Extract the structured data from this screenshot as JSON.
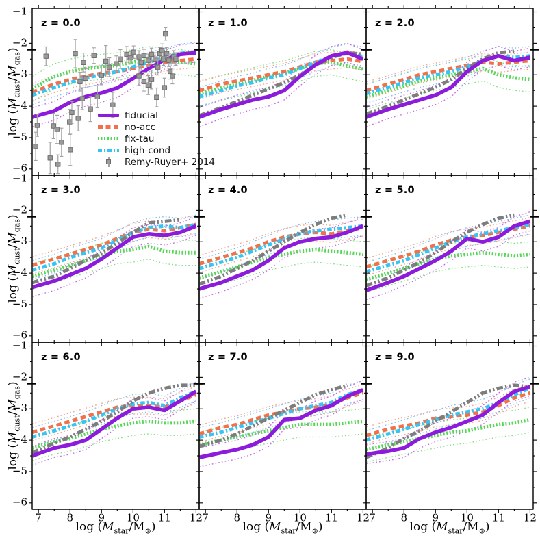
{
  "chart_data": {
    "type": "line",
    "layout_hint": "3x3 shared-axis panel grid",
    "xlabel": "log (M_star/M_sun)",
    "ylabel": "log (M_dust/M_gas)",
    "xlabel_fragments": {
      "pre": "log (",
      "m1": "M",
      "sub1": "star",
      "mid": "/M",
      "sub2": "⊙",
      "post": ")"
    },
    "ylabel_fragments": {
      "pre": "log (",
      "m1": "M",
      "sub1": "dust",
      "mid": "/",
      "m2": "M",
      "sub2": "gas",
      "post": ")"
    },
    "xlim": [
      6.8,
      12.1
    ],
    "ylim": [
      -6.2,
      -0.88
    ],
    "xticks": [
      7,
      8,
      9,
      10,
      11,
      12
    ],
    "xtick_labels": [
      "7",
      "8",
      "9",
      "10",
      "11",
      "12"
    ],
    "yticks": [
      -1,
      -2,
      -3,
      -4,
      -5,
      -6
    ],
    "ytick_labels": [
      "−1",
      "−2",
      "−3",
      "−4",
      "−5",
      "−6"
    ],
    "minor_tick_step": 0.5,
    "mw_marker_y": -2.2,
    "grid": "off",
    "legend_position": "lower right of first panel",
    "x_grid": [
      6.8,
      7.5,
      8.0,
      8.5,
      9.0,
      9.5,
      10.0,
      10.5,
      11.0,
      11.5,
      12.0
    ],
    "series_styles": [
      {
        "key": "fixtau",
        "color": "#54d854",
        "env_color": "#82e082",
        "dash": "densedot",
        "width": 5,
        "env_offset": 0.4
      },
      {
        "key": "noacc",
        "color": "#f0714a",
        "env_color": "#f8a287",
        "dash": "dashed",
        "width": 5,
        "env_offset": 0.27
      },
      {
        "key": "highcond",
        "color": "#38c3f2",
        "env_color": "#79c0f8",
        "dash": "dashdot",
        "width": 5,
        "env_offset": 0.3
      },
      {
        "key": "zref",
        "color": "#7d7d7d",
        "env_color": null,
        "dash": "dashdotdot",
        "width": 5,
        "env_offset": 0
      },
      {
        "key": "fiducial",
        "color": "#8d1bdb",
        "env_color": "#c46ae8",
        "dash": "solid",
        "width": 5.5,
        "env_offset": 0.3
      }
    ],
    "draw_order": [
      "fixtau",
      "noacc",
      "highcond",
      "zref",
      "fiducial"
    ],
    "observations": {
      "marker": "square",
      "color": "#9a9a9a",
      "edge_color": "#6e6e6e",
      "errbar_color": "#a2a2a2"
    },
    "legend": {
      "entries": [
        {
          "label": "fiducial",
          "sample": "fiducial"
        },
        {
          "label": "no-acc",
          "sample": "noacc"
        },
        {
          "label": "fix-tau",
          "sample": "fixtau"
        },
        {
          "label": "high-cond",
          "sample": "highcond"
        },
        {
          "label": "Remy-Ruyer+ 2014",
          "sample": "obs"
        }
      ]
    },
    "panels": [
      {
        "label": "z = 0.0",
        "series": {
          "fiducial": [
            -4.35,
            -4.15,
            -3.88,
            -3.7,
            -3.58,
            -3.42,
            -3.12,
            -2.8,
            -2.52,
            -2.35,
            -2.3
          ],
          "noacc": [
            -3.55,
            -3.3,
            -3.15,
            -3.05,
            -2.95,
            -2.9,
            -2.8,
            -2.7,
            -2.62,
            -2.55,
            -2.5
          ],
          "fixtau": [
            -3.45,
            -3.05,
            -2.9,
            -2.8,
            -2.75,
            -2.7,
            -2.6,
            -2.5,
            -2.55,
            -2.6,
            -2.65
          ],
          "highcond": [
            -3.65,
            -3.4,
            -3.25,
            -3.1,
            -3.0,
            -2.9,
            -2.75,
            -2.6,
            -2.45,
            -2.32,
            -2.27
          ],
          "zref": null
        },
        "scatter": [
          [
            6.91,
            -5.28,
            0.45
          ],
          [
            6.96,
            -4.61,
            0.35
          ],
          [
            7.24,
            -2.41,
            0.3
          ],
          [
            7.37,
            -5.65,
            0.5
          ],
          [
            7.48,
            -4.63,
            0.4
          ],
          [
            7.59,
            -4.74,
            0.45
          ],
          [
            7.62,
            -5.85,
            0.3
          ],
          [
            7.73,
            -5.15,
            0.45
          ],
          [
            7.99,
            -4.5,
            0.4
          ],
          [
            8.01,
            -5.39,
            0.5
          ],
          [
            8.06,
            -4.2,
            0.35
          ],
          [
            8.17,
            -2.33,
            0.45
          ],
          [
            8.26,
            -4.39,
            0.4
          ],
          [
            8.32,
            -3.22,
            0.3
          ],
          [
            8.39,
            -3.76,
            0.35
          ],
          [
            8.43,
            -2.61,
            0.3
          ],
          [
            8.5,
            -3.11,
            0.3
          ],
          [
            8.65,
            -4.09,
            0.4
          ],
          [
            8.76,
            -2.39,
            0.25
          ],
          [
            8.87,
            -3.7,
            0.35
          ],
          [
            9.0,
            -3.02,
            0.3
          ],
          [
            9.14,
            -2.57,
            0.5
          ],
          [
            9.25,
            -2.76,
            0.3
          ],
          [
            9.36,
            -3.96,
            0.4
          ],
          [
            9.47,
            -2.65,
            0.25
          ],
          [
            9.6,
            -2.5,
            0.3
          ],
          [
            9.8,
            -2.35,
            0.25
          ],
          [
            9.91,
            -2.46,
            0.2
          ],
          [
            10.02,
            -2.28,
            0.2
          ],
          [
            10.19,
            -2.43,
            0.2
          ],
          [
            10.19,
            -3.04,
            0.3
          ],
          [
            10.26,
            -2.61,
            0.25
          ],
          [
            10.35,
            -2.39,
            0.2
          ],
          [
            10.35,
            -3.22,
            0.3
          ],
          [
            10.48,
            -2.54,
            0.2
          ],
          [
            10.48,
            -3.33,
            0.3
          ],
          [
            10.59,
            -2.35,
            0.2
          ],
          [
            10.59,
            -3.15,
            0.3
          ],
          [
            10.7,
            -2.5,
            0.2
          ],
          [
            10.75,
            -3.72,
            0.3
          ],
          [
            10.79,
            -2.76,
            0.25
          ],
          [
            10.85,
            -2.33,
            0.2
          ],
          [
            10.92,
            -2.22,
            0.2
          ],
          [
            10.96,
            -2.5,
            0.2
          ],
          [
            11.0,
            -3.41,
            0.3
          ],
          [
            11.03,
            -1.7,
            0.2
          ],
          [
            11.07,
            -2.33,
            0.2
          ],
          [
            11.14,
            -2.54,
            0.2
          ],
          [
            11.18,
            -2.89,
            0.25
          ],
          [
            11.25,
            -3.04,
            0.25
          ],
          [
            11.29,
            -2.43,
            0.2
          ],
          [
            11.36,
            -2.5,
            0.2
          ]
        ]
      },
      {
        "label": "z = 1.0",
        "series": {
          "fiducial": [
            -4.35,
            -4.1,
            -3.95,
            -3.8,
            -3.7,
            -3.5,
            -3.05,
            -2.68,
            -2.4,
            -2.3,
            -2.5
          ],
          "noacc": [
            -3.5,
            -3.3,
            -3.2,
            -3.1,
            -3.0,
            -2.9,
            -2.75,
            -2.6,
            -2.55,
            -2.5,
            -2.58
          ],
          "fixtau": [
            -3.6,
            -3.42,
            -3.3,
            -3.18,
            -3.05,
            -2.95,
            -2.8,
            -2.65,
            -2.6,
            -2.72,
            -2.82
          ],
          "highcond": [
            -3.7,
            -3.5,
            -3.35,
            -3.25,
            -3.1,
            -3.0,
            -2.8,
            -2.6,
            -2.42,
            -2.32,
            -2.42
          ],
          "zref": [
            -4.3,
            -4.05,
            -3.85,
            -3.65,
            -3.45,
            -3.25,
            -3.0,
            -2.7,
            -2.45,
            -2.3,
            -2.35
          ]
        }
      },
      {
        "label": "z = 2.0",
        "series": {
          "fiducial": [
            -4.35,
            -4.1,
            -3.95,
            -3.8,
            -3.65,
            -3.4,
            -2.9,
            -2.55,
            -2.4,
            -2.55,
            -2.45
          ],
          "noacc": [
            -3.5,
            -3.3,
            -3.15,
            -3.0,
            -2.9,
            -2.8,
            -2.7,
            -2.6,
            -2.65,
            -2.6,
            -2.55
          ],
          "fixtau": [
            -3.7,
            -3.5,
            -3.35,
            -3.2,
            -3.1,
            -3.0,
            -2.9,
            -2.8,
            -3.0,
            -3.1,
            -3.15
          ],
          "highcond": [
            -3.6,
            -3.4,
            -3.25,
            -3.1,
            -3.0,
            -2.9,
            -2.75,
            -2.55,
            -2.4,
            -2.45,
            -2.4
          ],
          "zref": [
            -4.25,
            -4.0,
            -3.8,
            -3.6,
            -3.4,
            -3.15,
            -2.8,
            -2.5,
            -2.3,
            -2.25,
            null
          ]
        }
      },
      {
        "label": "z = 3.0",
        "series": {
          "fiducial": [
            -4.45,
            -4.25,
            -4.05,
            -3.85,
            -3.55,
            -3.2,
            -2.85,
            -2.75,
            -2.8,
            -2.7,
            -2.5
          ],
          "noacc": [
            -3.75,
            -3.55,
            -3.4,
            -3.25,
            -3.1,
            -2.9,
            -2.7,
            -2.6,
            -2.65,
            -2.55,
            -2.45
          ],
          "fixtau": [
            -4.1,
            -3.9,
            -3.75,
            -3.6,
            -3.45,
            -3.3,
            -3.25,
            -3.15,
            -3.3,
            -3.35,
            -3.35
          ],
          "highcond": [
            -3.9,
            -3.7,
            -3.5,
            -3.35,
            -3.2,
            -2.95,
            -2.7,
            -2.55,
            -2.5,
            -2.55,
            -2.45
          ],
          "zref": [
            -4.3,
            -4.1,
            -3.85,
            -3.6,
            -3.35,
            -3.05,
            -2.7,
            -2.4,
            -2.35,
            -2.3,
            null
          ]
        }
      },
      {
        "label": "z = 4.0",
        "series": {
          "fiducial": [
            -4.5,
            -4.3,
            -4.1,
            -3.9,
            -3.6,
            -3.2,
            -3.0,
            -2.9,
            -2.85,
            -2.7,
            -2.5
          ],
          "noacc": [
            -3.7,
            -3.5,
            -3.35,
            -3.2,
            -3.0,
            -2.85,
            -2.75,
            -2.7,
            -2.75,
            -2.65,
            -2.55
          ],
          "fixtau": [
            -4.15,
            -3.95,
            -3.8,
            -3.65,
            -3.5,
            -3.4,
            -3.3,
            -3.25,
            -3.3,
            -3.35,
            -3.4
          ],
          "highcond": [
            -3.85,
            -3.65,
            -3.5,
            -3.3,
            -3.1,
            -2.9,
            -2.75,
            -2.65,
            -2.6,
            -2.55,
            -2.5
          ],
          "zref": [
            -4.35,
            -4.1,
            -3.85,
            -3.6,
            -3.3,
            -3.0,
            -2.7,
            -2.45,
            -2.25,
            -2.15,
            null
          ]
        }
      },
      {
        "label": "z = 5.0",
        "series": {
          "fiducial": [
            -4.55,
            -4.3,
            -4.1,
            -3.85,
            -3.6,
            -3.3,
            -2.9,
            -3.0,
            -2.85,
            -2.5,
            -2.35
          ],
          "noacc": [
            -3.8,
            -3.6,
            -3.45,
            -3.3,
            -3.1,
            -2.95,
            -2.85,
            -2.8,
            -2.7,
            -2.6,
            -2.5
          ],
          "fixtau": [
            -4.2,
            -4.0,
            -3.85,
            -3.7,
            -3.55,
            -3.45,
            -3.4,
            -3.35,
            -3.4,
            -3.45,
            -3.4
          ],
          "highcond": [
            -3.95,
            -3.75,
            -3.6,
            -3.4,
            -3.2,
            -3.0,
            -2.85,
            -2.75,
            -2.65,
            -2.55,
            -2.45
          ],
          "zref": [
            -4.4,
            -4.15,
            -3.9,
            -3.65,
            -3.35,
            -3.0,
            -2.7,
            -2.45,
            -2.25,
            -2.15,
            null
          ]
        }
      },
      {
        "label": "z = 6.0",
        "series": {
          "fiducial": [
            -4.5,
            -4.25,
            -4.15,
            -4.0,
            -3.65,
            -3.3,
            -3.0,
            -2.95,
            -3.05,
            -2.75,
            -2.45
          ],
          "noacc": [
            -3.75,
            -3.55,
            -3.4,
            -3.25,
            -3.1,
            -2.95,
            -2.9,
            -2.9,
            -2.95,
            -2.75,
            -2.55
          ],
          "fixtau": [
            -4.25,
            -4.05,
            -3.95,
            -3.8,
            -3.65,
            -3.55,
            -3.45,
            -3.4,
            -3.45,
            -3.45,
            -3.4
          ],
          "highcond": [
            -3.9,
            -3.7,
            -3.55,
            -3.4,
            -3.2,
            -3.0,
            -2.85,
            -2.8,
            -2.9,
            -2.65,
            -2.45
          ],
          "zref": [
            -4.4,
            -4.1,
            -3.9,
            -3.65,
            -3.4,
            -3.1,
            -2.75,
            -2.5,
            -2.35,
            -2.25,
            -2.25
          ]
        }
      },
      {
        "label": "z = 7.0",
        "series": {
          "fiducial": [
            -4.55,
            -4.4,
            -4.3,
            -4.15,
            -3.9,
            -3.35,
            -3.3,
            -3.05,
            -2.9,
            -2.6,
            -2.4
          ],
          "noacc": [
            -3.8,
            -3.6,
            -3.5,
            -3.35,
            -3.2,
            -3.1,
            -3.0,
            -2.95,
            -2.85,
            -2.65,
            -2.5
          ],
          "fixtau": [
            -4.15,
            -4.0,
            -3.9,
            -3.8,
            -3.7,
            -3.6,
            -3.5,
            -3.5,
            -3.5,
            -3.45,
            -3.4
          ],
          "highcond": [
            -3.9,
            -3.75,
            -3.6,
            -3.45,
            -3.3,
            -3.15,
            -3.0,
            -2.9,
            -2.8,
            -2.55,
            -2.4
          ],
          "zref": [
            -4.2,
            -4.0,
            -3.8,
            -3.55,
            -3.3,
            -3.05,
            -2.8,
            -2.55,
            -2.4,
            -2.25,
            null
          ]
        }
      },
      {
        "label": "z = 9.0",
        "series": {
          "fiducial": [
            -4.45,
            -4.35,
            -4.25,
            -3.95,
            -3.75,
            -3.6,
            -3.4,
            -3.2,
            -2.8,
            -2.45,
            -2.3
          ],
          "noacc": [
            -3.85,
            -3.65,
            -3.55,
            -3.45,
            -3.3,
            -3.25,
            -3.2,
            -3.1,
            -2.9,
            -2.65,
            -2.5
          ],
          "fixtau": [
            -4.3,
            -4.15,
            -4.05,
            -3.95,
            -3.85,
            -3.75,
            -3.7,
            -3.6,
            -3.5,
            -3.45,
            -3.35
          ],
          "highcond": [
            -4.0,
            -3.8,
            -3.65,
            -3.5,
            -3.35,
            -3.2,
            -3.1,
            -3.0,
            -2.8,
            -2.55,
            -2.35
          ],
          "zref": [
            -4.55,
            -4.25,
            -3.95,
            -3.7,
            -3.4,
            -3.1,
            -2.8,
            -2.5,
            -2.35,
            -2.25,
            -2.3
          ]
        }
      }
    ]
  }
}
